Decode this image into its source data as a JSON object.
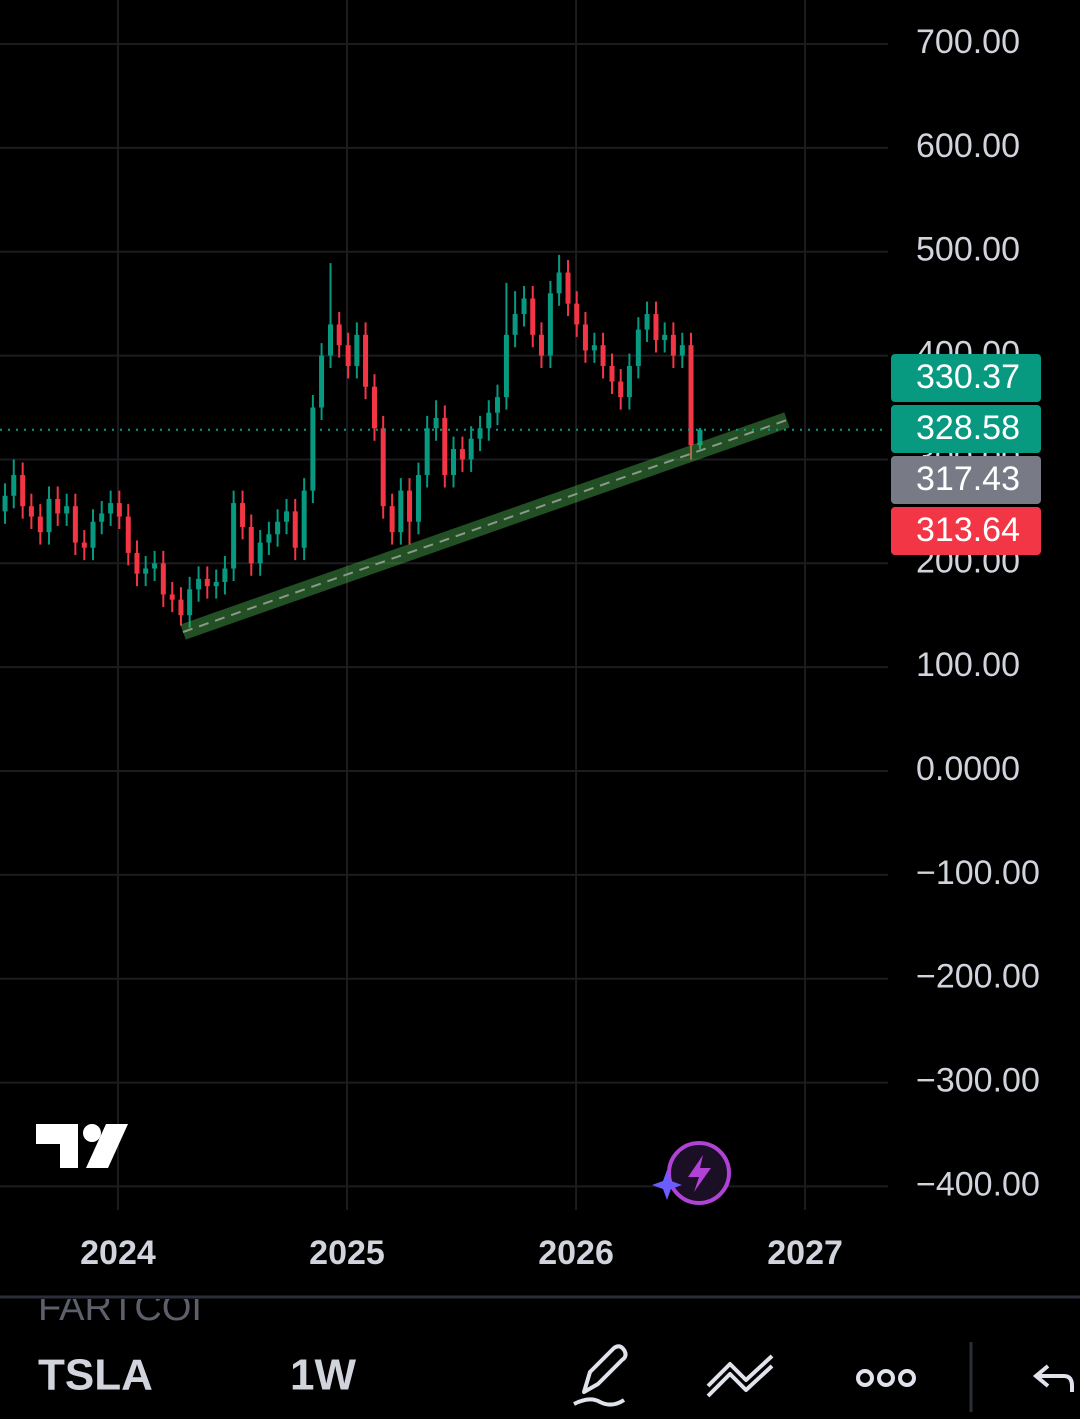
{
  "chart_data": {
    "type": "candlestick",
    "symbol": "TSLA",
    "interval": "1W",
    "other_symbol": "FARTCOI",
    "up_color": "#089981",
    "down_color": "#f23645",
    "grid": true,
    "xlim": [
      2023.485,
      2027.362
    ],
    "xticks": [
      2024,
      2025,
      2026,
      2027
    ],
    "ylim": [
      -422.7,
      742.4
    ],
    "yticks": [
      {
        "value": 700,
        "label": "700.00"
      },
      {
        "value": 600,
        "label": "600.00"
      },
      {
        "value": 500,
        "label": "500.00"
      },
      {
        "value": 400,
        "label": "400.00"
      },
      {
        "value": 300,
        "label": "300.00"
      },
      {
        "value": 200,
        "label": "200.00"
      },
      {
        "value": 100,
        "label": "100.00"
      },
      {
        "value": 0,
        "label": "0.0000"
      },
      {
        "value": -100,
        "label": "−100.00"
      },
      {
        "value": -200,
        "label": "−200.00"
      },
      {
        "value": -300,
        "label": "−300.00"
      },
      {
        "value": -400,
        "label": "−400.00"
      }
    ],
    "x": [
      2023.507,
      2023.545,
      2023.584,
      2023.622,
      2023.661,
      2023.699,
      2023.737,
      2023.776,
      2023.814,
      2023.853,
      2023.891,
      2023.929,
      2023.968,
      2024.006,
      2024.045,
      2024.083,
      2024.121,
      2024.16,
      2024.198,
      2024.237,
      2024.275,
      2024.313,
      2024.352,
      2024.39,
      2024.429,
      2024.467,
      2024.505,
      2024.544,
      2024.582,
      2024.621,
      2024.659,
      2024.697,
      2024.736,
      2024.774,
      2024.813,
      2024.851,
      2024.889,
      2024.928,
      2024.966,
      2025.005,
      2025.043,
      2025.081,
      2025.12,
      2025.158,
      2025.197,
      2025.235,
      2025.273,
      2025.312,
      2025.35,
      2025.389,
      2025.427,
      2025.465,
      2025.504,
      2025.542,
      2025.581,
      2025.619,
      2025.657,
      2025.696,
      2025.734,
      2025.773,
      2025.811,
      2025.849,
      2025.888,
      2025.926,
      2025.965,
      2026.003,
      2026.041,
      2026.08,
      2026.118,
      2026.157,
      2026.195,
      2026.233,
      2026.272,
      2026.31,
      2026.349,
      2026.387,
      2026.425,
      2026.464,
      2026.502,
      2026.541
    ],
    "open": [
      250,
      265,
      285,
      255,
      245,
      230,
      262,
      248,
      255,
      220,
      215,
      240,
      248,
      258,
      245,
      210,
      190,
      195,
      200,
      170,
      165,
      150,
      175,
      185,
      178,
      182,
      195,
      258,
      235,
      200,
      220,
      228,
      240,
      250,
      215,
      270,
      350,
      400,
      430,
      410,
      390,
      420,
      370,
      330,
      255,
      230,
      270,
      240,
      285,
      330,
      340,
      285,
      310,
      300,
      320,
      330,
      345,
      360,
      420,
      440,
      455,
      420,
      400,
      460,
      480,
      450,
      430,
      405,
      410,
      390,
      375,
      360,
      390,
      425,
      440,
      415,
      420,
      400,
      410,
      313.64
    ],
    "high": [
      277,
      300,
      297,
      267,
      257,
      274,
      274,
      267,
      267,
      232,
      252,
      260,
      270,
      270,
      257,
      222,
      207,
      212,
      212,
      182,
      177,
      187,
      197,
      197,
      194,
      207,
      270,
      270,
      247,
      232,
      240,
      252,
      262,
      262,
      282,
      362,
      412,
      489,
      442,
      422,
      432,
      432,
      382,
      342,
      267,
      282,
      282,
      297,
      342,
      357,
      352,
      322,
      322,
      332,
      342,
      357,
      372,
      470,
      462,
      467,
      467,
      432,
      472,
      497,
      492,
      462,
      442,
      422,
      422,
      402,
      387,
      402,
      437,
      452,
      452,
      432,
      432,
      422,
      422,
      330.37
    ],
    "low": [
      238,
      253,
      243,
      233,
      218,
      218,
      236,
      236,
      208,
      203,
      203,
      228,
      236,
      233,
      198,
      178,
      178,
      183,
      158,
      153,
      140,
      138,
      163,
      166,
      166,
      170,
      183,
      223,
      188,
      188,
      208,
      216,
      228,
      203,
      203,
      258,
      338,
      388,
      398,
      378,
      378,
      358,
      318,
      243,
      218,
      218,
      218,
      228,
      273,
      318,
      273,
      273,
      288,
      288,
      308,
      318,
      333,
      348,
      408,
      428,
      408,
      388,
      388,
      448,
      438,
      418,
      393,
      393,
      378,
      363,
      348,
      348,
      378,
      413,
      403,
      403,
      388,
      388,
      300,
      310
    ],
    "close": [
      265,
      285,
      255,
      245,
      230,
      262,
      248,
      255,
      220,
      215,
      240,
      248,
      258,
      245,
      210,
      190,
      195,
      200,
      170,
      165,
      150,
      175,
      185,
      178,
      182,
      195,
      258,
      235,
      200,
      220,
      228,
      240,
      250,
      215,
      270,
      350,
      400,
      430,
      410,
      390,
      420,
      370,
      330,
      255,
      230,
      270,
      240,
      285,
      330,
      340,
      285,
      310,
      300,
      320,
      330,
      345,
      360,
      420,
      440,
      455,
      420,
      400,
      460,
      480,
      450,
      430,
      405,
      410,
      390,
      375,
      360,
      390,
      425,
      440,
      415,
      420,
      400,
      410,
      313.64,
      328.58
    ],
    "trendline": {
      "x": [
        2024.284,
        2026.921
      ],
      "values": [
        133.8,
        338
      ],
      "color": "#4caf50"
    },
    "price_labels": [
      {
        "value": 330.37,
        "color": "#089981"
      },
      {
        "value": 328.58,
        "color": "#089981"
      },
      {
        "value": 317.43,
        "color": "#787b86"
      },
      {
        "value": 313.64,
        "color": "#f23645"
      }
    ],
    "price_line": 1
  }
}
